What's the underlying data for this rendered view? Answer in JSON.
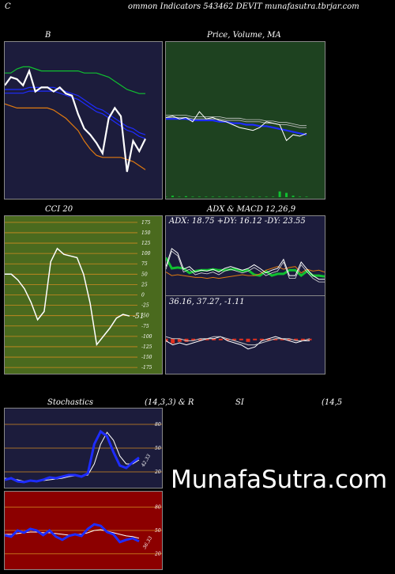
{
  "header": {
    "left": "C",
    "center": "ommon  Indicators 543462  DEVIT munafasutra.tbrjar.com"
  },
  "watermark": "MunafaSutra.com",
  "colors": {
    "navy": "#1c1c3c",
    "green_panel": "#1e4220",
    "olive": "#4a6a1e",
    "red_panel": "#8c0000",
    "blue": "#1e2cff",
    "orange": "#e07a10",
    "green_line": "#10c030",
    "white": "#ffffff"
  },
  "chart_data": [
    {
      "id": "bollinger",
      "type": "line",
      "title": "B",
      "series": [
        {
          "color": "#10c030",
          "values": [
            20.8,
            20.8,
            21.0,
            21.1,
            21.1,
            21.0,
            20.9,
            20.9,
            20.9,
            20.9,
            20.9,
            20.9,
            20.9,
            20.8,
            20.8,
            20.8,
            20.7,
            20.6,
            20.4,
            20.2,
            20.0,
            19.9,
            19.8,
            19.8
          ]
        },
        {
          "color": "#1e2cff",
          "values": [
            20.0,
            20.0,
            20.0,
            20.0,
            20.1,
            20.1,
            20.1,
            20.1,
            20.1,
            20.0,
            19.9,
            19.8,
            19.7,
            19.5,
            19.3,
            19.1,
            19.0,
            18.8,
            18.6,
            18.4,
            18.2,
            18.1,
            17.9,
            17.8
          ]
        },
        {
          "color": "#e07a10",
          "values": [
            19.3,
            19.2,
            19.1,
            19.1,
            19.1,
            19.1,
            19.1,
            19.1,
            19.0,
            18.8,
            18.6,
            18.3,
            18.0,
            17.5,
            17.1,
            16.8,
            16.7,
            16.7,
            16.7,
            16.7,
            16.6,
            16.5,
            16.3,
            16.1
          ]
        },
        {
          "color": "#ffffff",
          "values": [
            20.2,
            20.6,
            20.5,
            20.2,
            20.9,
            19.9,
            20.1,
            20.1,
            19.9,
            20.1,
            19.8,
            19.7,
            18.8,
            18.1,
            17.8,
            17.4,
            16.9,
            18.6,
            19.1,
            18.7,
            16.0,
            17.5,
            17.0,
            17.6
          ]
        }
      ],
      "ylim": [
        15.0,
        22.0
      ]
    },
    {
      "id": "price-ma",
      "type": "line",
      "title": "Price,  Volume, MA",
      "series": [
        {
          "color": "#1e2cff",
          "values": [
            51,
            51,
            51,
            51,
            50,
            50,
            50,
            50,
            49,
            49,
            48,
            48,
            47,
            47,
            46,
            46,
            45,
            44,
            43,
            42,
            41,
            40
          ]
        },
        {
          "color": "#aaaaaa",
          "values": [
            52,
            52,
            52,
            52,
            51,
            51,
            51,
            51,
            51,
            50,
            50,
            50,
            49,
            49,
            49,
            48,
            48,
            47,
            47,
            46,
            45,
            45
          ]
        },
        {
          "color": "#ffffff",
          "values": [
            52,
            53,
            51,
            52,
            49,
            56,
            51,
            52,
            50,
            49,
            47,
            45,
            44,
            43,
            45,
            49,
            48,
            47,
            36,
            40,
            39,
            41
          ]
        }
      ],
      "ylim": [
        0,
        100
      ],
      "volume": [
        1,
        3,
        1,
        2,
        1,
        1,
        1,
        1,
        1,
        1,
        1,
        1,
        1,
        1,
        1,
        1,
        1,
        12,
        9,
        3,
        1,
        1
      ]
    },
    {
      "id": "cci",
      "type": "line",
      "title": "CCI 20",
      "ticks": [
        175,
        150,
        125,
        100,
        75,
        50,
        25,
        0,
        -25,
        -50,
        -75,
        -100,
        -125,
        -150,
        -175
      ],
      "tick_labels": [
        "175",
        "150",
        "125",
        "100",
        "75",
        "50",
        "25",
        "0",
        "-25",
        "-50",
        "-75",
        "-100",
        "-125",
        "-150",
        "-175"
      ],
      "values": [
        50,
        50,
        36,
        15,
        -18,
        -60,
        -40,
        80,
        112,
        98,
        94,
        90,
        50,
        -20,
        -120,
        -100,
        -80,
        -56,
        -47,
        -51
      ],
      "last_label": "-51",
      "ylim": [
        -190,
        190
      ]
    },
    {
      "id": "adx",
      "type": "line",
      "title": "ADX  & MACD 12,26,9",
      "label": "ADX: 18.75  +DY: 16.12  -DY: 23.55",
      "series": [
        {
          "color": "#10c030",
          "values": [
            40,
            28,
            29,
            28,
            23,
            25,
            26,
            26,
            27,
            26,
            26,
            27,
            27,
            25,
            26,
            21,
            20,
            25,
            20,
            22,
            22,
            26,
            26,
            20,
            25,
            20,
            20,
            19
          ]
        },
        {
          "color": "#e07a10",
          "values": [
            24,
            20,
            21,
            20,
            19,
            18,
            18,
            17,
            18,
            17,
            18,
            19,
            20,
            21,
            20,
            20,
            22,
            26,
            28,
            30,
            27,
            29,
            30,
            23,
            27,
            25,
            26,
            24
          ]
        },
        {
          "color": "#ffffff",
          "values": [
            30,
            50,
            45,
            27,
            30,
            24,
            26,
            25,
            27,
            24,
            28,
            30,
            28,
            26,
            28,
            32,
            28,
            23,
            26,
            28,
            38,
            20,
            20,
            35,
            27,
            20,
            16,
            16
          ]
        }
      ],
      "ylim": [
        0,
        70
      ]
    },
    {
      "id": "macd",
      "type": "line",
      "label": "36.16,  37.27,  -1.11",
      "macd": [
        36,
        34,
        35,
        34,
        35,
        36,
        37,
        37,
        38,
        36,
        35,
        34,
        32,
        33,
        36,
        37,
        38,
        37,
        36,
        35,
        36,
        36
      ],
      "signal": [
        38,
        37,
        37,
        36,
        36,
        37,
        37,
        38,
        38,
        37,
        36,
        35,
        34,
        34,
        35,
        36,
        37,
        37,
        37,
        36,
        36,
        37
      ],
      "hist": [
        -2,
        -3,
        -2,
        -2,
        -1,
        -1,
        0,
        -1,
        0,
        -1,
        -1,
        -1,
        -2,
        -1,
        1,
        1,
        1,
        0,
        -1,
        -1,
        0,
        -1
      ],
      "ylim": [
        20,
        50
      ]
    },
    {
      "id": "stochastics",
      "type": "line",
      "title": "Stochastics",
      "params": "(14,3,3) & R",
      "ticks": [
        80,
        50,
        20
      ],
      "tick_labels": [
        "80",
        "50",
        "20"
      ],
      "k": [
        10,
        12,
        8,
        7,
        9,
        8,
        10,
        13,
        12,
        14,
        16,
        16,
        14,
        18,
        55,
        71,
        65,
        45,
        28,
        25,
        32,
        38
      ],
      "d": [
        12,
        11,
        10,
        8,
        8,
        9,
        9,
        10,
        11,
        12,
        14,
        15,
        15,
        16,
        30,
        55,
        70,
        60,
        40,
        30,
        30,
        35
      ],
      "last_label": "42.33",
      "ylim": [
        0,
        100
      ]
    },
    {
      "id": "rsi",
      "type": "line",
      "title": "SI",
      "params": "(14,5",
      "ticks": [
        80,
        50,
        20
      ],
      "tick_labels": [
        "80",
        "50",
        "20"
      ],
      "rsi": [
        44,
        42,
        50,
        47,
        52,
        50,
        44,
        50,
        42,
        38,
        43,
        45,
        43,
        52,
        58,
        56,
        48,
        45,
        35,
        38,
        40,
        36
      ],
      "ma": [
        45,
        45,
        46,
        47,
        48,
        48,
        47,
        47,
        46,
        45,
        44,
        45,
        45,
        47,
        50,
        51,
        49,
        47,
        45,
        43,
        42,
        40
      ],
      "last_label": "36.33",
      "ylim": [
        0,
        100
      ]
    }
  ]
}
